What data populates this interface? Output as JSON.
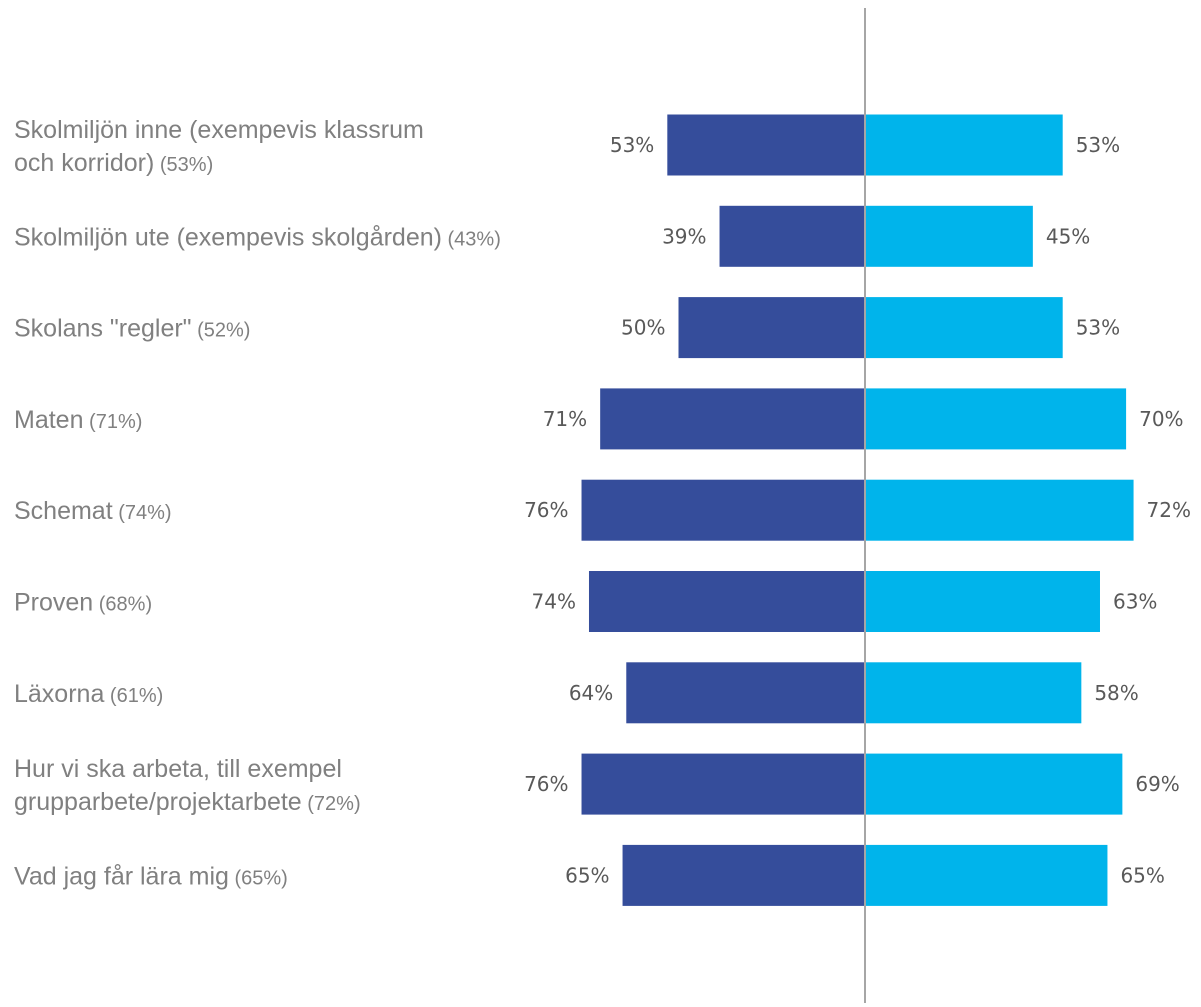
{
  "chart_data": {
    "type": "bar",
    "orientation": "horizontal-diverging",
    "xlim": [
      0,
      100
    ],
    "grid": false,
    "colors": {
      "left": "#354D9B",
      "right": "#00B4EB",
      "axis": "#A6A6A6",
      "label": "#808080",
      "value": "#595959"
    },
    "categories": [
      {
        "lines": [
          "Skolmiljön inne (exempevis klassrum",
          "och korridor)"
        ],
        "total": "(53%)"
      },
      {
        "lines": [
          "Skolmiljön ute (exempevis skolgården)"
        ],
        "total": "(43%)"
      },
      {
        "lines": [
          "Skolans \"regler\""
        ],
        "total": "(52%)"
      },
      {
        "lines": [
          "Maten"
        ],
        "total": "(71%)"
      },
      {
        "lines": [
          "Schemat"
        ],
        "total": "(74%)"
      },
      {
        "lines": [
          "Proven"
        ],
        "total": "(68%)"
      },
      {
        "lines": [
          "Läxorna"
        ],
        "total": "(61%)"
      },
      {
        "lines": [
          "Hur vi ska arbeta, till exempel",
          "grupparbete/projektarbete"
        ],
        "total": "(72%)"
      },
      {
        "lines": [
          "Vad jag får lära mig"
        ],
        "total": "(65%)"
      }
    ],
    "series": [
      {
        "side": "left",
        "values": [
          53,
          39,
          50,
          71,
          76,
          74,
          64,
          76,
          65
        ],
        "labels": [
          "53%",
          "39%",
          "50%",
          "71%",
          "76%",
          "74%",
          "64%",
          "76%",
          "65%"
        ]
      },
      {
        "side": "right",
        "values": [
          53,
          45,
          53,
          70,
          72,
          63,
          58,
          69,
          65
        ],
        "labels": [
          "53%",
          "45%",
          "53%",
          "70%",
          "72%",
          "63%",
          "58%",
          "69%",
          "65%"
        ]
      }
    ]
  }
}
